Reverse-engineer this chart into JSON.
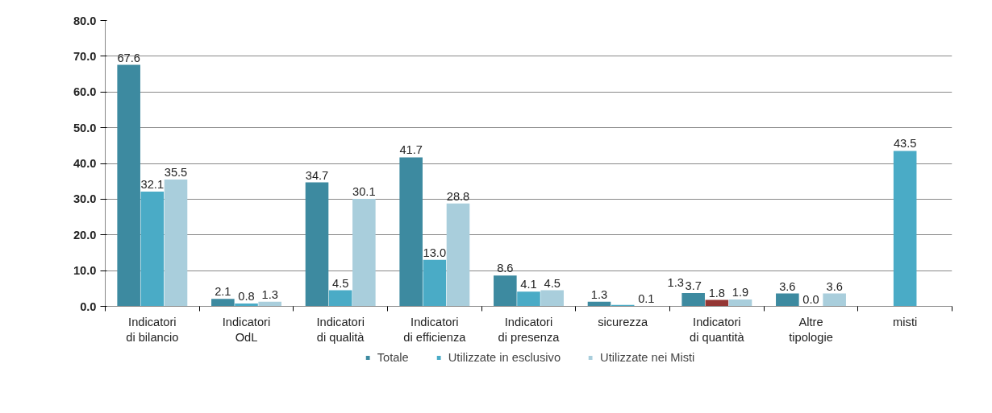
{
  "chart_data": {
    "type": "bar",
    "categories": [
      "Indicatori\ndi bilancio",
      "Indicatori\nOdL",
      "Indicatori\ndi qualità",
      "Indicatori\ndi efficienza",
      "Indicatori\ndi presenza",
      "sicurezza",
      "Indicatori\ndi quantità",
      "Altre\ntipologie",
      "misti"
    ],
    "series": [
      {
        "name": "Totale",
        "color": "#3d8aa0",
        "values": [
          67.6,
          2.1,
          34.7,
          41.7,
          8.6,
          1.3,
          3.7,
          3.6,
          null
        ],
        "value_labels": [
          "67.6",
          "2.1",
          "34.7",
          "41.7",
          "8.6",
          "1.3",
          "3.7",
          "3.6",
          null
        ]
      },
      {
        "name": "Utilizzate in esclusivo",
        "color": "#4aabc6",
        "colors": [
          null,
          null,
          null,
          null,
          null,
          null,
          "#943634",
          null,
          null
        ],
        "values": [
          32.1,
          0.8,
          4.5,
          13.0,
          4.1,
          0.4,
          1.8,
          0.0,
          43.5
        ],
        "value_labels": [
          "32.1",
          "0.8",
          "4.5",
          "13.0",
          "4.1",
          null,
          "1.8",
          "0.0",
          "43.5"
        ]
      },
      {
        "name": "Utilizzate nei Misti",
        "color": "#a9cedc",
        "values": [
          35.5,
          1.3,
          30.1,
          28.8,
          4.5,
          0.1,
          1.9,
          3.6,
          null
        ],
        "value_labels": [
          "35.5",
          "1.3",
          "30.1",
          "28.8",
          "4.5",
          "0.1",
          "1.9",
          "3.6",
          null
        ]
      }
    ],
    "annotations": [
      "1.3"
    ],
    "ylim": [
      0,
      80
    ],
    "yticks": [
      {
        "value": 0,
        "label": "0.0"
      },
      {
        "value": 10,
        "label": "10.0"
      },
      {
        "value": 20,
        "label": "20.0"
      },
      {
        "value": 30,
        "label": "30.0"
      },
      {
        "value": 40,
        "label": "40.0"
      },
      {
        "value": 50,
        "label": "50.0"
      },
      {
        "value": 60,
        "label": "60.0"
      },
      {
        "value": 70,
        "label": "70.0"
      },
      {
        "value": 80,
        "label": "80.0"
      }
    ],
    "grid": "y",
    "legend": "bottom"
  }
}
